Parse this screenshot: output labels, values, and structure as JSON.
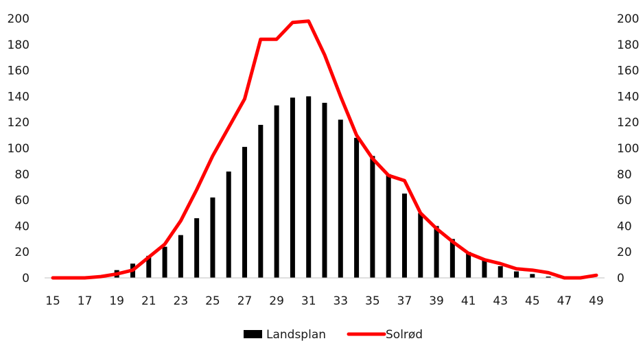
{
  "chart_data": {
    "type": "bar",
    "x": [
      15,
      16,
      17,
      18,
      19,
      20,
      21,
      22,
      23,
      24,
      25,
      26,
      27,
      28,
      29,
      30,
      31,
      32,
      33,
      34,
      35,
      36,
      37,
      38,
      39,
      40,
      41,
      42,
      43,
      44,
      45,
      46,
      47,
      48,
      49
    ],
    "x_tick_labels": [
      "15",
      "17",
      "19",
      "21",
      "23",
      "25",
      "27",
      "29",
      "31",
      "33",
      "35",
      "37",
      "39",
      "41",
      "43",
      "45",
      "47",
      "49"
    ],
    "y_tick_labels": [
      "0",
      "20",
      "40",
      "60",
      "80",
      "100",
      "120",
      "140",
      "160",
      "180",
      "200"
    ],
    "ylim": [
      0,
      200
    ],
    "y2lim": [
      0,
      200
    ],
    "series": [
      {
        "name": "Landsplan",
        "type": "bar",
        "color": "#000000",
        "values": [
          0,
          0,
          0,
          1,
          6,
          11,
          17,
          24,
          33,
          46,
          62,
          82,
          101,
          118,
          133,
          139,
          140,
          135,
          122,
          108,
          94,
          80,
          65,
          50,
          40,
          30,
          20,
          14,
          9,
          5,
          3,
          1,
          0,
          0,
          0
        ]
      },
      {
        "name": "Solrød",
        "type": "line",
        "color": "#ff0000",
        "values": [
          0,
          0,
          0,
          1,
          3,
          6,
          16,
          26,
          44,
          68,
          94,
          116,
          138,
          184,
          184,
          197,
          198,
          172,
          140,
          110,
          92,
          79,
          75,
          50,
          38,
          28,
          19,
          14,
          11,
          7,
          6,
          4,
          0,
          0,
          2
        ]
      }
    ],
    "legend": {
      "position": "bottom",
      "entries": [
        "Landsplan",
        "Solrød"
      ]
    },
    "grid": false
  }
}
